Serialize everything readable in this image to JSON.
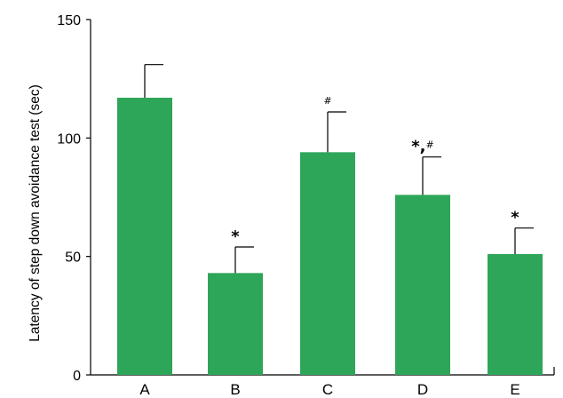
{
  "chart_data": {
    "type": "bar",
    "title": "",
    "xlabel": "",
    "ylabel": "Latency of step down avoidance test (sec)",
    "ylim": [
      0,
      150
    ],
    "yticks": [
      0,
      50,
      100,
      150
    ],
    "categories": [
      "A",
      "B",
      "C",
      "D",
      "E"
    ],
    "values": [
      117,
      43,
      94,
      76,
      51
    ],
    "errors": [
      14,
      11,
      17,
      16,
      11
    ],
    "annotations": [
      "",
      "*",
      "#",
      "*,#",
      "*"
    ],
    "bar_color": "#2ea65a",
    "grid": false
  }
}
